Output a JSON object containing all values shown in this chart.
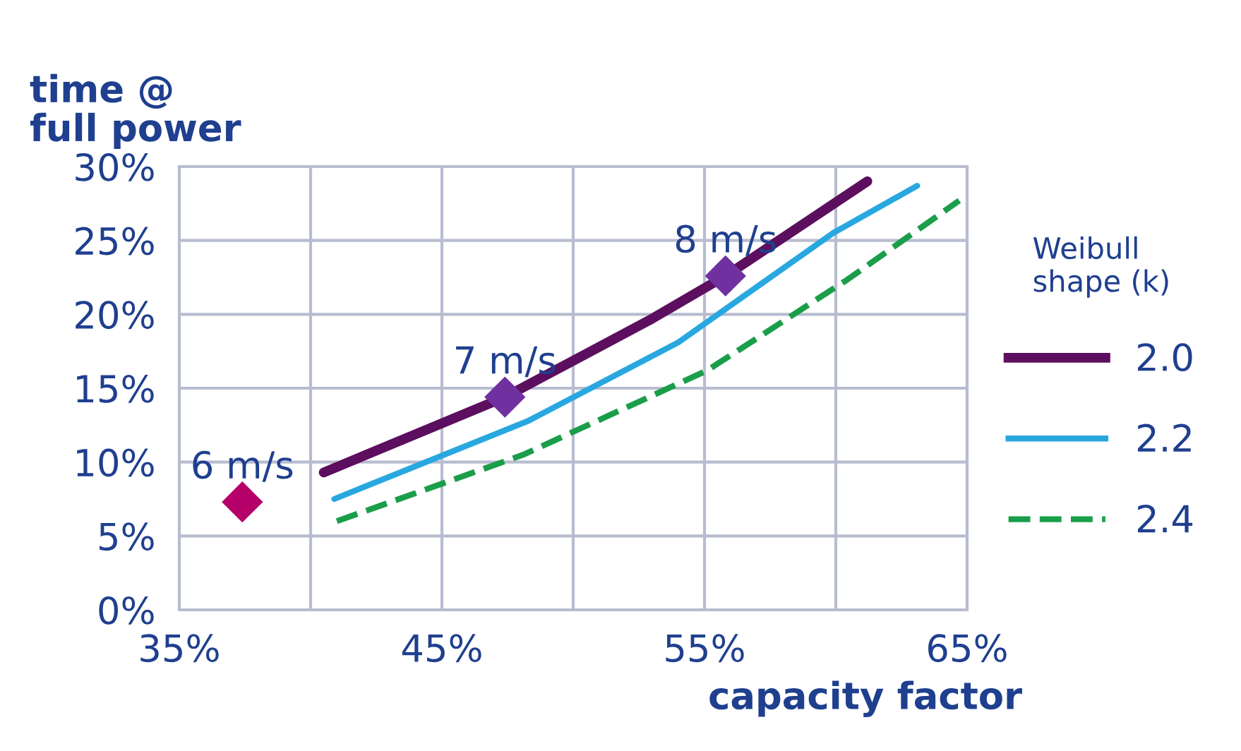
{
  "chart_data": {
    "type": "line",
    "xlabel": "capacity factor",
    "ylabel": "time @\nfull power",
    "legend_title": "Weibull\nshape (k)",
    "xlim": [
      35,
      65
    ],
    "ylim": [
      0,
      30
    ],
    "xticks": [
      {
        "value": 35,
        "label": "35%"
      },
      {
        "value": 40,
        "label": null
      },
      {
        "value": 45,
        "label": "45%"
      },
      {
        "value": 50,
        "label": null
      },
      {
        "value": 55,
        "label": "55%"
      },
      {
        "value": 60,
        "label": null
      },
      {
        "value": 65,
        "label": "65%"
      }
    ],
    "yticks": [
      {
        "value": 0,
        "label": "0%"
      },
      {
        "value": 5,
        "label": "5%"
      },
      {
        "value": 10,
        "label": "10%"
      },
      {
        "value": 15,
        "label": "15%"
      },
      {
        "value": 20,
        "label": "20%"
      },
      {
        "value": 25,
        "label": "25%"
      },
      {
        "value": 30,
        "label": "30%"
      }
    ],
    "grid": true,
    "legend": "right",
    "series": [
      {
        "name": "2.0",
        "color": "#5c0f5e",
        "line_style": "solid",
        "x": [
          40.5,
          47.4,
          52.9,
          55.8,
          61.2
        ],
        "values": [
          9.3,
          14.4,
          19.6,
          22.6,
          29.0
        ]
      },
      {
        "name": "2.2",
        "color": "#29a8e0",
        "line_style": "solid",
        "x": [
          40.9,
          48.3,
          54.0,
          59.9,
          63.1
        ],
        "values": [
          7.5,
          12.8,
          18.1,
          25.5,
          28.7
        ]
      },
      {
        "name": "2.4",
        "color": "#1a9e4a",
        "line_style": "dashed",
        "x": [
          41.0,
          48.1,
          55.1,
          60.4,
          64.7
        ],
        "values": [
          6.0,
          10.5,
          16.2,
          22.3,
          27.7
        ]
      },
      {
        "type": "scatter",
        "marker": "diamond",
        "colors": [
          "#b5006a",
          "#7030a0",
          "#7030a0"
        ],
        "x": [
          37.4,
          47.4,
          55.8
        ],
        "values": [
          7.3,
          14.4,
          22.6
        ]
      }
    ],
    "annotations": [
      {
        "text": "6 m/s",
        "x": 37.4,
        "y": 7.3
      },
      {
        "text": "7 m/s",
        "x": 47.4,
        "y": 14.4
      },
      {
        "text": "8 m/s",
        "x": 55.8,
        "y": 22.6
      }
    ]
  }
}
